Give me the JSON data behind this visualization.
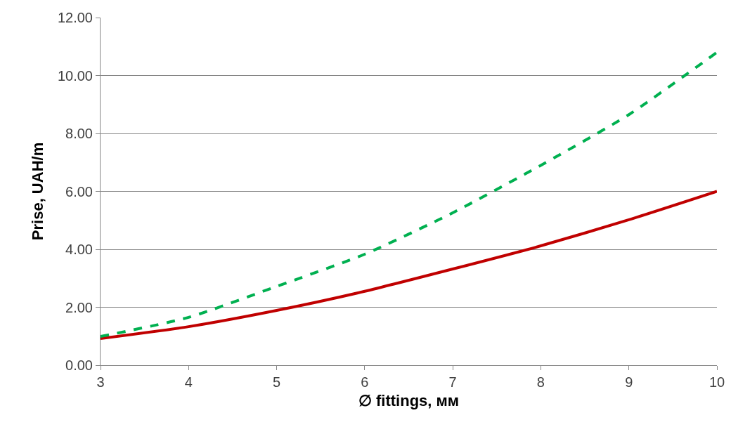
{
  "chart_data": {
    "type": "line",
    "xlabel": "∅ fittings, мм",
    "ylabel": "Prise, UAH/m",
    "x": [
      3,
      4,
      5,
      6,
      7,
      8,
      9,
      10
    ],
    "series": [
      {
        "color": "#c00000",
        "values": [
          0.92,
          1.33,
          1.89,
          2.55,
          3.32,
          4.12,
          5.02,
          6.0
        ],
        "line_style": "solid"
      },
      {
        "color": "#00b050",
        "values": [
          0.99,
          1.65,
          2.72,
          3.83,
          5.26,
          6.9,
          8.65,
          10.8
        ],
        "line_style": "dashed"
      }
    ],
    "xlim": [
      3,
      10
    ],
    "xticks": [
      3,
      4,
      5,
      6,
      7,
      8,
      9,
      10
    ],
    "ylim": [
      0,
      12
    ],
    "yticks": [
      {
        "value": 0,
        "label": "0.00"
      },
      {
        "value": 2,
        "label": "2.00"
      },
      {
        "value": 4,
        "label": "4.00"
      },
      {
        "value": 6,
        "label": "6.00"
      },
      {
        "value": 8,
        "label": "8.00"
      },
      {
        "value": 10,
        "label": "10.00"
      },
      {
        "value": 12,
        "label": "12.00"
      }
    ],
    "grid": "y"
  }
}
